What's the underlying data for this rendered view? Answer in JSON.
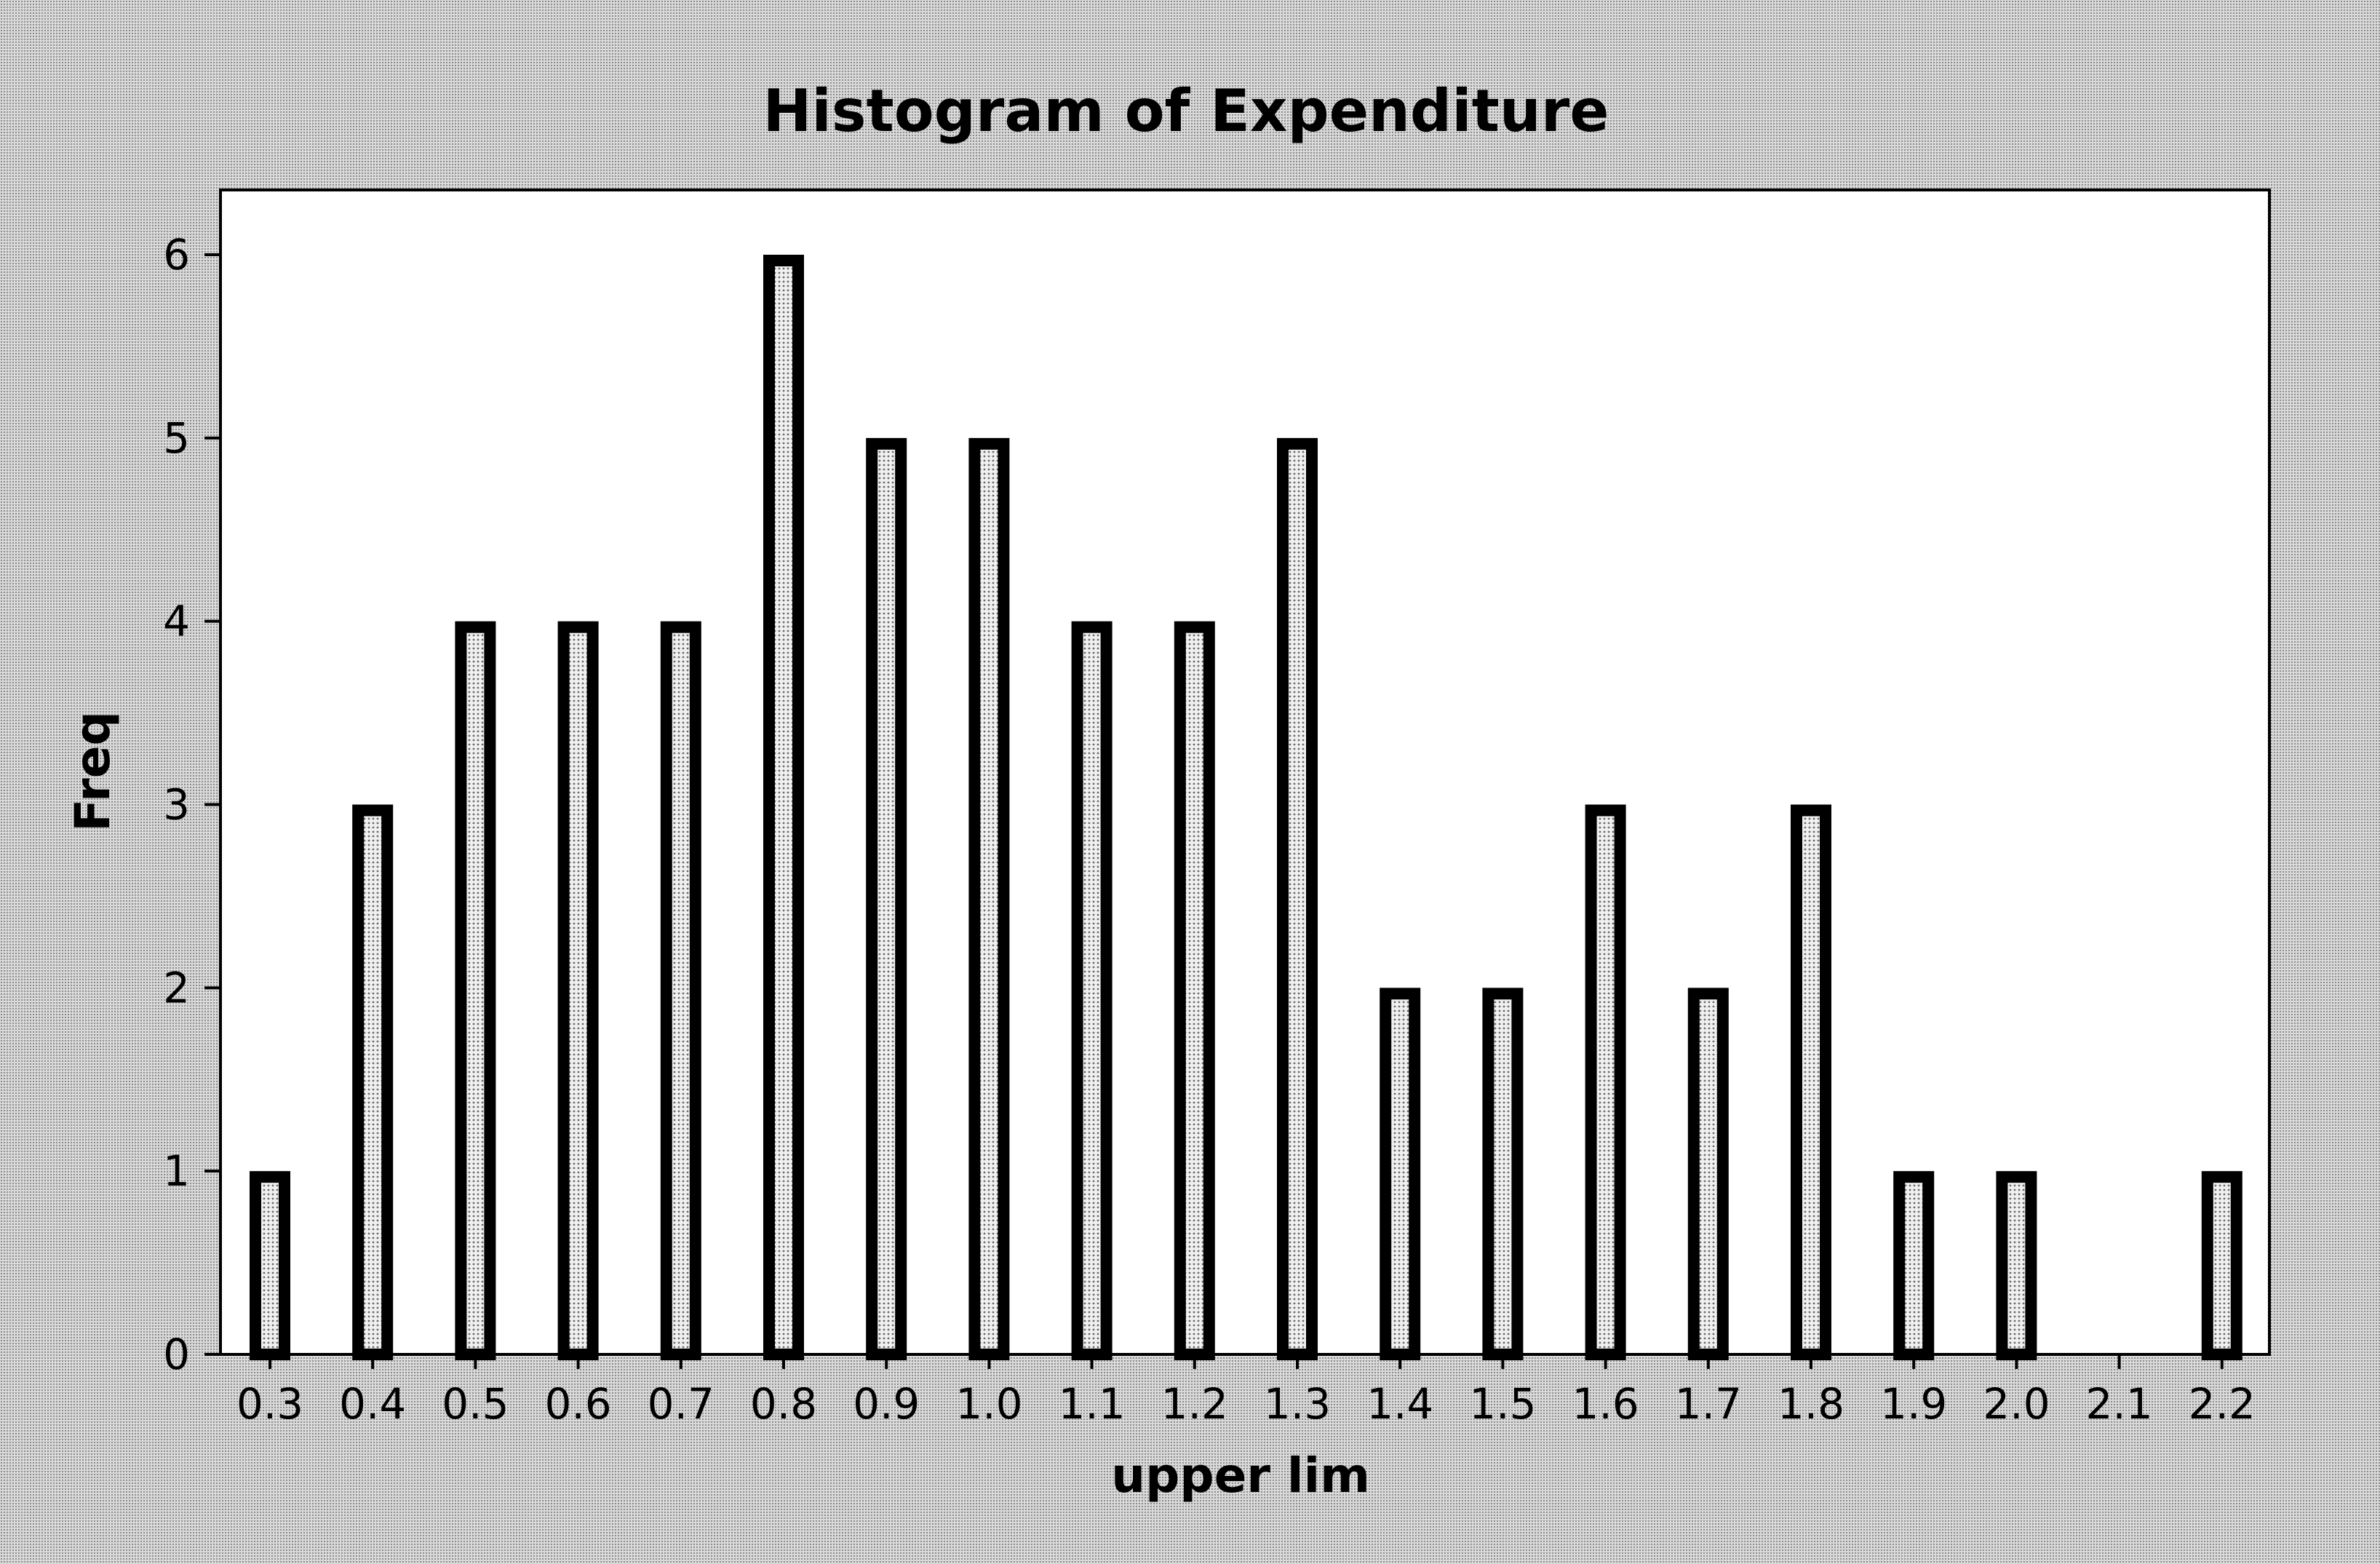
{
  "chart_data": {
    "type": "bar",
    "title": "Histogram of Expenditure",
    "xlabel": "upper lim",
    "ylabel": "Freq",
    "categories": [
      "0.3",
      "0.4",
      "0.5",
      "0.6",
      "0.7",
      "0.8",
      "0.9",
      "1.0",
      "1.1",
      "1.2",
      "1.3",
      "1.4",
      "1.5",
      "1.6",
      "1.7",
      "1.8",
      "1.9",
      "2.0",
      "2.1",
      "2.2"
    ],
    "values": [
      1,
      3,
      4,
      4,
      4,
      6,
      5,
      5,
      4,
      4,
      5,
      2,
      2,
      3,
      2,
      3,
      1,
      1,
      0,
      1
    ],
    "yticks": [
      "0",
      "1",
      "2",
      "3",
      "4",
      "5",
      "6"
    ],
    "ylim": [
      0,
      6
    ],
    "grid": false,
    "legend": "none",
    "colors": {
      "bar_fill": "#e6e6e6",
      "bar_outline": "#000000",
      "plot_background": "#ffffff"
    }
  }
}
